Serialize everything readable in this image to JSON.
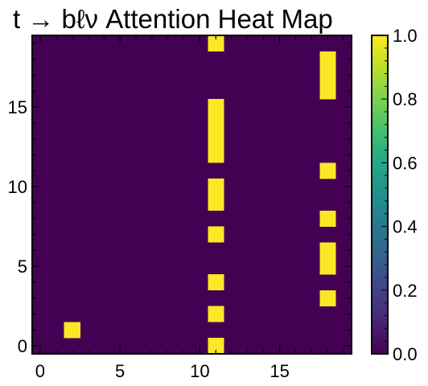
{
  "chart_data": {
    "type": "heatmap",
    "title": "t → bℓν Attention Heat Map",
    "xlabel": "",
    "ylabel": "",
    "x_range": [
      -0.5,
      19.5
    ],
    "y_range": [
      -0.5,
      19.5
    ],
    "x_ticks": [
      0,
      5,
      10,
      15
    ],
    "y_ticks": [
      0,
      5,
      10,
      15
    ],
    "value_range": [
      0.0,
      1.0
    ],
    "colormap": "viridis",
    "low_color": "#440154",
    "high_color": "#fde725",
    "colorbar_ticks": [
      "0.0",
      "0.2",
      "0.4",
      "0.6",
      "0.8",
      "1.0"
    ],
    "grid": false,
    "background_value": 0.0,
    "cells_value_1": [
      [
        2,
        1
      ],
      [
        11,
        0
      ],
      [
        11,
        2
      ],
      [
        11,
        4
      ],
      [
        11,
        7
      ],
      [
        11,
        9
      ],
      [
        11,
        10
      ],
      [
        11,
        12
      ],
      [
        11,
        13
      ],
      [
        11,
        14
      ],
      [
        11,
        15
      ],
      [
        11,
        19
      ],
      [
        18,
        3
      ],
      [
        18,
        5
      ],
      [
        18,
        6
      ],
      [
        18,
        8
      ],
      [
        18,
        11
      ],
      [
        18,
        16
      ],
      [
        18,
        17
      ],
      [
        18,
        18
      ]
    ]
  }
}
